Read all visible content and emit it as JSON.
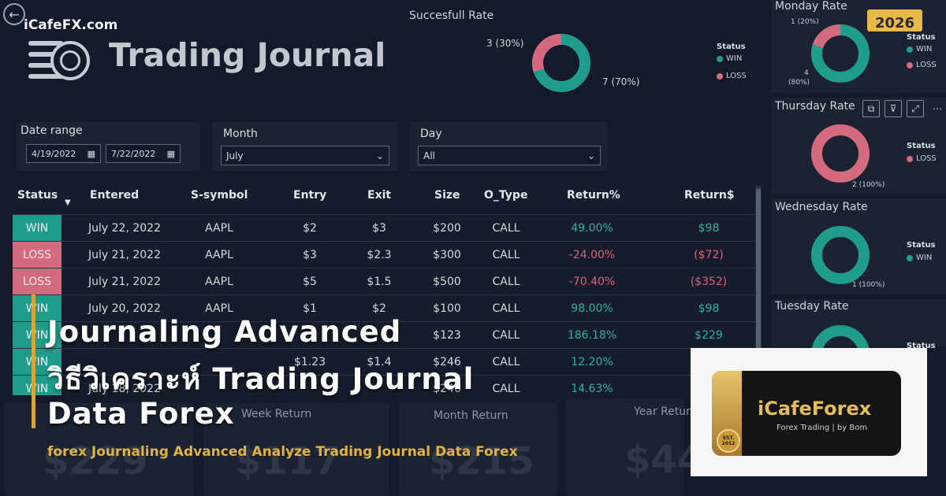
{
  "header": {
    "site_name": "iCafeFX.com",
    "title": "Trading Journal"
  },
  "success_rate": {
    "title": "Succesfull Rate",
    "legend_title": "Status",
    "legend": [
      "WIN",
      "LOSS"
    ],
    "loss_label": "3 (30%)",
    "win_label": "7 (70%)"
  },
  "filters": {
    "date_range_label": "Date range",
    "date_from": "4/19/2022",
    "date_to": "7/22/2022",
    "month_label": "Month",
    "month_value": "July",
    "day_label": "Day",
    "day_value": "All"
  },
  "table": {
    "columns": [
      "Status",
      "Entered",
      "S-symbol",
      "Entry",
      "Exit",
      "Size",
      "O_Type",
      "Return%",
      "Return$"
    ],
    "rows": [
      [
        "WIN",
        "July 22, 2022",
        "AAPL",
        "$2",
        "$3",
        "$200",
        "CALL",
        "49.00%",
        "$98"
      ],
      [
        "LOSS",
        "July 21, 2022",
        "AAPL",
        "$3",
        "$2.3",
        "$300",
        "CALL",
        "-24.00%",
        "($72)"
      ],
      [
        "LOSS",
        "July 21, 2022",
        "AAPL",
        "$5",
        "$1.5",
        "$500",
        "CALL",
        "-70.40%",
        "($352)"
      ],
      [
        "WIN",
        "July 20, 2022",
        "AAPL",
        "$1",
        "$2",
        "$100",
        "CALL",
        "98.00%",
        "$98"
      ],
      [
        "WIN",
        "",
        "",
        "",
        "",
        "$123",
        "CALL",
        "186.18%",
        "$229"
      ],
      [
        "WIN",
        "",
        "",
        "$1.23",
        "$1.4",
        "$246",
        "CALL",
        "12.20%",
        ""
      ],
      [
        "WIN",
        "July 18, 2022",
        "",
        "",
        "",
        "$246",
        "CALL",
        "14.63%",
        ""
      ]
    ]
  },
  "kpis": {
    "week_title": "Week Return",
    "month_title": "Month Return",
    "year_title": "Year Return",
    "week_value": "$117",
    "month_value": "$215",
    "year_value": "$44",
    "day_value": "$229"
  },
  "right_panels": {
    "monday": {
      "title": "Monday Rate",
      "loss_label": "1 (20%)",
      "win_label_count": "4",
      "win_label_pct": "(80%)",
      "legend_title": "Status",
      "legend": [
        "WIN",
        "LOSS"
      ]
    },
    "thursday": {
      "title": "Thursday Rate",
      "loss_label": "2 (100%)",
      "legend_title": "Status",
      "legend": [
        "LOSS"
      ]
    },
    "wednesday": {
      "title": "Wednesday Rate",
      "win_label": "1 (100%)",
      "legend_title": "Status",
      "legend": [
        "WIN"
      ]
    },
    "tuesday": {
      "title": "Tuesday Rate",
      "legend_title": "Status"
    }
  },
  "overlay": {
    "line1": "Journaling Advanced",
    "line2": "วิธีวิเคราะห์ Trading Journal",
    "line3": "Data Forex",
    "subtitle": "forex Journaling Advanced Analyze Trading Journal Data Forex"
  },
  "brand": {
    "name": "iCafeForex",
    "tagline": "Forex Trading | by Bom",
    "est": "EST.",
    "est_year": "2012",
    "year_badge": "2026"
  },
  "icons": [
    "back-icon",
    "calendar-icon",
    "chevron-down-icon",
    "sort-down-icon",
    "copy-icon",
    "filter-icon",
    "expand-icon",
    "more-icon"
  ],
  "colors": {
    "win": "#1f9c8b",
    "loss": "#d46a7e",
    "gold": "#e0b344",
    "background": "#141a2a"
  }
}
